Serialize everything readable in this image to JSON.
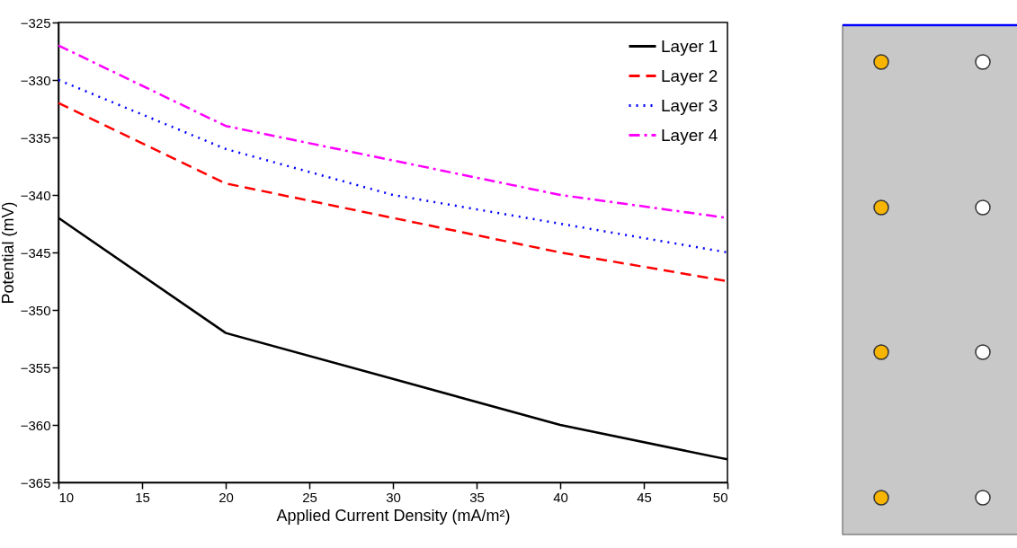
{
  "chart_data": {
    "type": "line",
    "xlabel": "Applied Current Density (mA/m²)",
    "ylabel": "Potential (mV)",
    "x": [
      10,
      20,
      30,
      40,
      50
    ],
    "series": [
      {
        "name": "Layer 1",
        "color": "#000000",
        "line_style": "solid",
        "values": [
          -342,
          -352,
          -356,
          -360,
          -363
        ]
      },
      {
        "name": "Layer 2",
        "color": "#ff0000",
        "line_style": "dashed",
        "values": [
          -332,
          -339,
          -342,
          -345,
          -347.5
        ]
      },
      {
        "name": "Layer 3",
        "color": "#0000ff",
        "line_style": "dotted",
        "values": [
          -330,
          -336,
          -340,
          -342.5,
          -345
        ]
      },
      {
        "name": "Layer 4",
        "color": "#ff00ff",
        "line_style": "dashdot",
        "values": [
          -327,
          -334,
          -337,
          -340,
          -342
        ]
      }
    ],
    "xlim": [
      10,
      50
    ],
    "xticks": [
      10,
      15,
      20,
      25,
      30,
      35,
      40,
      45,
      50
    ],
    "ylim": [
      -365,
      -325
    ],
    "yticks": [
      -365,
      -360,
      -355,
      -350,
      -345,
      -340,
      -335,
      -330,
      -325
    ],
    "grid": false,
    "legend": "top right",
    "marker": "none"
  }
}
